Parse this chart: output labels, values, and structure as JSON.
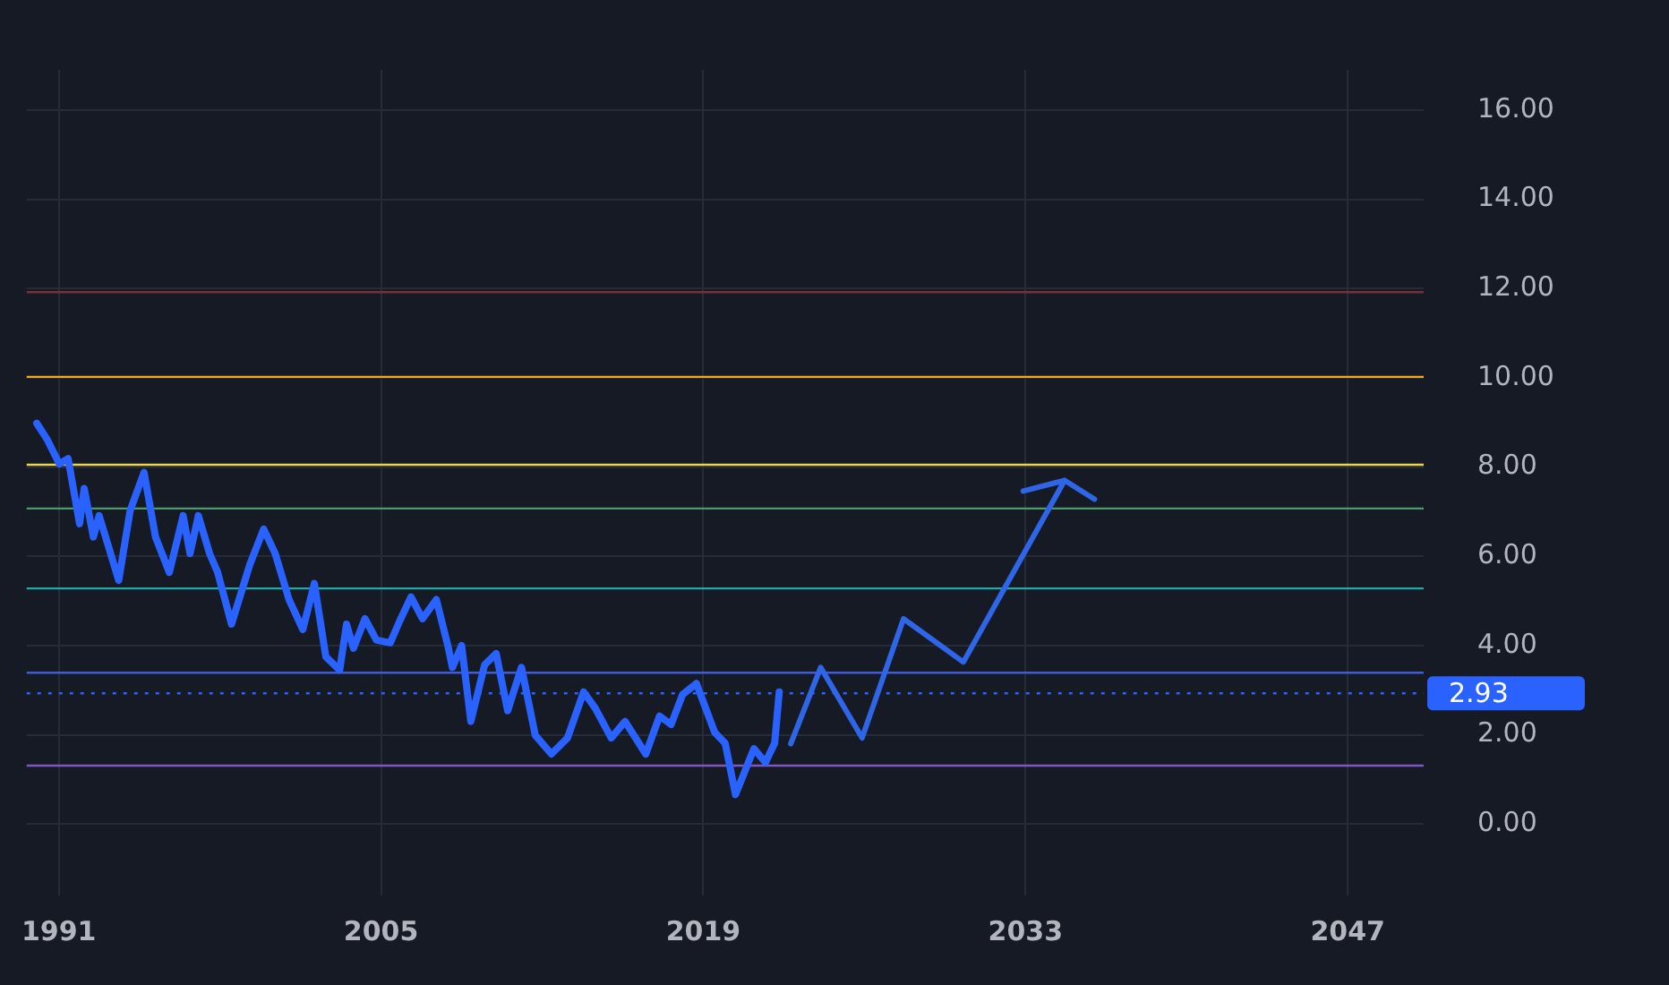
{
  "chart_data": {
    "type": "line",
    "xlim": [
      1989.6,
      2050.3
    ],
    "ylim": [
      -1.6,
      16.9
    ],
    "xticks": [
      1991,
      2005,
      2019,
      2033,
      2047
    ],
    "yticks": [
      {
        "value": 0,
        "label": "0.00"
      },
      {
        "value": 2,
        "label": "2.00"
      },
      {
        "value": 4,
        "label": "4.00"
      },
      {
        "value": 6,
        "label": "6.00"
      },
      {
        "value": 8,
        "label": "8.00"
      },
      {
        "value": 10,
        "label": "10.00"
      },
      {
        "value": 12,
        "label": "12.00"
      },
      {
        "value": 14,
        "label": "14.00"
      },
      {
        "value": 16,
        "label": "16.00"
      }
    ],
    "grid": true,
    "legend": false,
    "marker": "none",
    "line_style": "solid",
    "series": [
      {
        "color": "#2962ff",
        "x": [
          1990.04,
          1990.5,
          1991.02,
          1991.4,
          1991.9,
          1992.1,
          1992.5,
          1992.75,
          1993.6,
          1994.1,
          1994.7,
          1995.2,
          1995.8,
          1996.4,
          1996.7,
          1997.06,
          1997.55,
          1997.9,
          1998.5,
          1999.3,
          1999.9,
          2000.4,
          2001.0,
          2001.6,
          2002.1,
          2002.6,
          2003.2,
          2003.5,
          2003.8,
          2004.3,
          2004.8,
          2005.4,
          2005.8,
          2006.3,
          2006.8,
          2007.4,
          2007.9,
          2008.1,
          2008.5,
          2008.9,
          2009.5,
          2010.0,
          2010.5,
          2011.1,
          2011.7,
          2012.4,
          2013.1,
          2013.8,
          2014.3,
          2015.0,
          2015.6,
          2016.5,
          2017.1,
          2017.6,
          2018.1,
          2018.7,
          2019.5,
          2019.95,
          2020.4,
          2021.2,
          2021.7,
          2022.1,
          2022.3
        ],
        "values": [
          8.98,
          8.61,
          8.07,
          8.19,
          6.73,
          7.52,
          6.43,
          6.91,
          5.46,
          7.03,
          7.88,
          6.43,
          5.64,
          6.91,
          6.06,
          6.91,
          6.06,
          5.64,
          4.48,
          5.82,
          6.61,
          6.06,
          5.03,
          4.36,
          5.39,
          3.75,
          3.45,
          4.48,
          3.94,
          4.6,
          4.12,
          4.06,
          4.54,
          5.09,
          4.6,
          5.03,
          4.0,
          3.51,
          4.0,
          2.3,
          3.57,
          3.82,
          2.54,
          3.51,
          1.99,
          1.57,
          1.93,
          2.96,
          2.6,
          1.93,
          2.3,
          1.57,
          2.42,
          2.23,
          2.9,
          3.15,
          2.05,
          1.81,
          0.66,
          1.69,
          1.38,
          1.81,
          2.96
        ]
      },
      {
        "color": "#2f66e8",
        "x": [
          2022.8,
          2024.1,
          2025.9,
          2027.7,
          2030.3,
          2034.7,
          2036.0,
          null,
          2032.9,
          2034.7
        ],
        "values": [
          1.8,
          3.51,
          1.93,
          4.6,
          3.63,
          7.7,
          7.28,
          null,
          7.46,
          7.7
        ]
      }
    ],
    "ref_lines": [
      {
        "axis": "y",
        "value": 11.92,
        "color": "#7a2e3a"
      },
      {
        "axis": "y",
        "value": 10.02,
        "color": "#f5a623"
      },
      {
        "axis": "y",
        "value": 8.05,
        "color": "#e8d44d"
      },
      {
        "axis": "y",
        "value": 7.07,
        "color": "#4c9a6a"
      },
      {
        "axis": "y",
        "value": 5.28,
        "color": "#26a6a6"
      },
      {
        "axis": "y",
        "value": 3.39,
        "color": "#3f5bd6"
      },
      {
        "axis": "y",
        "value": 2.93,
        "label": "2.93",
        "color": "#2962ff",
        "line_style": "dotted"
      },
      {
        "axis": "y",
        "value": 1.31,
        "color": "#7e57c2"
      }
    ]
  }
}
